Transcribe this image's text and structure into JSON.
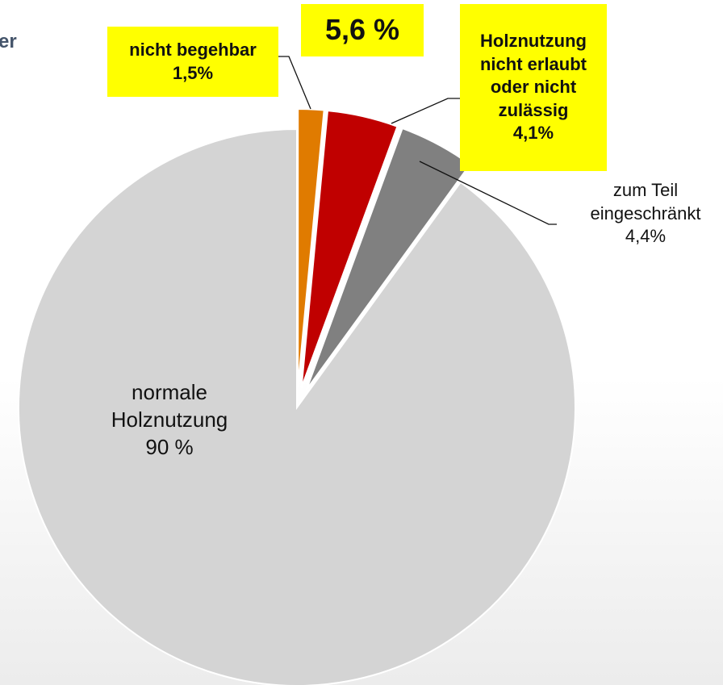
{
  "chart_data": {
    "type": "pie",
    "title": "er",
    "annotation": "5,6 %",
    "categories": [
      "nicht begehbar",
      "Holznutzung nicht erlaubt oder nicht zulässig",
      "zum Teil eingeschränkt",
      "normale Holznutzung"
    ],
    "values": [
      1.5,
      4.1,
      4.4,
      90
    ],
    "value_labels": [
      "1,5%",
      "4,1%",
      "4,4%",
      "90 %"
    ],
    "colors": [
      "#e07b00",
      "#c00000",
      "#808080",
      "#d4d4d4"
    ]
  }
}
